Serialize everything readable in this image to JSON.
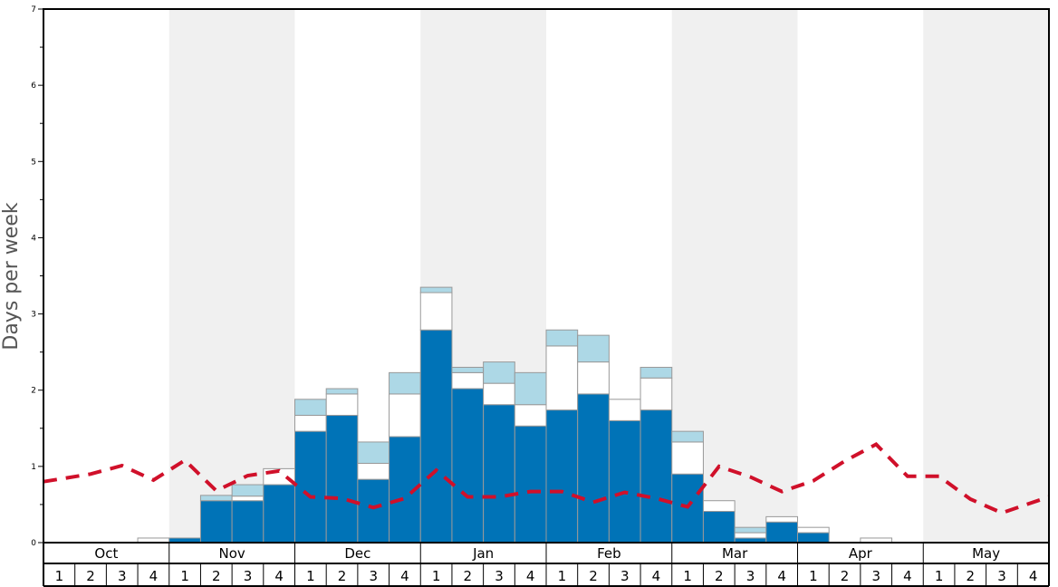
{
  "chart_data": {
    "type": "bar",
    "ylabel": "Days per week",
    "ylim": [
      0,
      7
    ],
    "yticks": [
      "0",
      "1",
      "2",
      "3",
      "4",
      "5",
      "6",
      "7"
    ],
    "months": [
      "Oct",
      "Nov",
      "Dec",
      "Jan",
      "Feb",
      "Mar",
      "Apr",
      "May"
    ],
    "weeks": [
      "1",
      "2",
      "3",
      "4"
    ],
    "shaded_months": [
      "Nov",
      "Jan",
      "Mar",
      "May"
    ],
    "colors": {
      "dark": "#0073b7",
      "mid": "#ffffff",
      "light": "#add8e6",
      "bar_edge": "#999999",
      "line": "#d0102a",
      "shade": "#f0f0f0"
    },
    "series": [
      {
        "values": [
          0,
          0,
          0,
          0,
          0.06,
          0.55,
          0.55,
          0.76,
          1.46,
          1.67,
          0.83,
          1.39,
          2.79,
          2.02,
          1.81,
          1.53,
          1.74,
          1.95,
          1.6,
          1.74,
          0.9,
          0.41,
          0.06,
          0.27,
          0.13,
          0,
          0,
          0,
          0,
          0,
          0,
          0
        ]
      },
      {
        "values": [
          0,
          0,
          0,
          0.06,
          0,
          0,
          0.06,
          0.21,
          0.21,
          0.28,
          0.21,
          0.56,
          0.49,
          0.21,
          0.28,
          0.28,
          0.84,
          0.42,
          0.28,
          0.42,
          0.42,
          0.14,
          0.07,
          0.07,
          0.07,
          0,
          0.06,
          0,
          0,
          0,
          0,
          0
        ]
      },
      {
        "values": [
          0,
          0,
          0,
          0,
          0,
          0.07,
          0.15,
          0,
          0.21,
          0.07,
          0.28,
          0.28,
          0.07,
          0.07,
          0.28,
          0.42,
          0.21,
          0.35,
          0,
          0.14,
          0.14,
          0,
          0.07,
          0,
          0,
          0,
          0,
          0,
          0,
          0,
          0,
          0
        ]
      },
      {
        "type": "line",
        "values": [
          0.8,
          0.9,
          1.01,
          0.82,
          1.08,
          0.68,
          0.88,
          0.94,
          0.6,
          0.58,
          0.46,
          0.58,
          0.95,
          0.6,
          0.6,
          0.67,
          0.67,
          0.53,
          0.66,
          0.58,
          0.47,
          1.0,
          0.86,
          0.67,
          0.81,
          1.07,
          1.29,
          0.87,
          0.87,
          0.57,
          0.39,
          0.6
        ]
      }
    ]
  }
}
